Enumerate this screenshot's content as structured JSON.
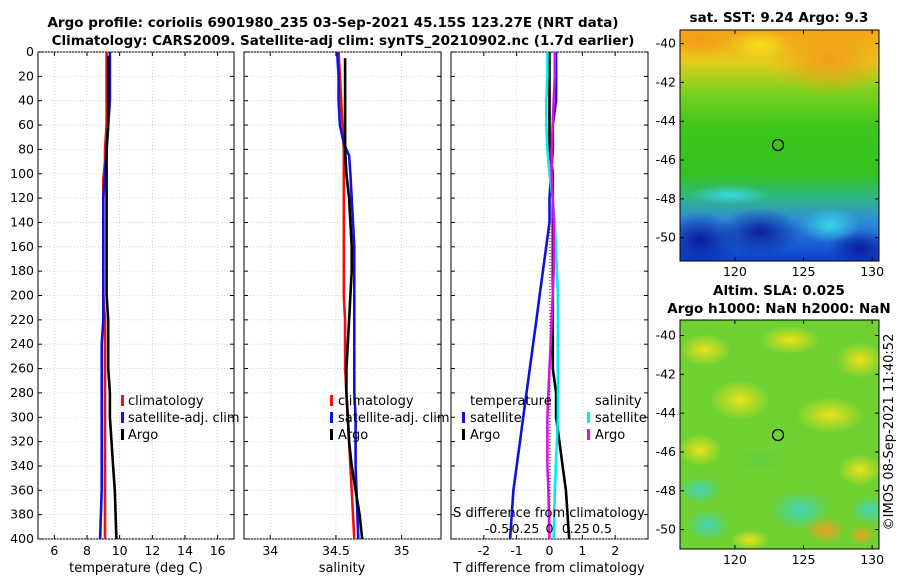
{
  "header": {
    "title_line1": "Argo profile: coriolis 6901980_235 03-Sep-2021 45.15S 123.27E (NRT data)",
    "title_line2": "Climatology: CARS2009. Satellite-adj clim: synTS_20210902.nc (1.7d earlier)"
  },
  "footer": {
    "credit": "©IMOS 08-Sep-2021 11:40:52"
  },
  "colors": {
    "climatology": "#ee1111",
    "satellite": "#1111dd",
    "argo": "#000000",
    "sal_diff": "#00eeee",
    "sal_sat": "#dd11dd",
    "grid": "#cccccc"
  },
  "chart_data": [
    {
      "id": "temperature-profile",
      "type": "line",
      "xlabel": "temperature (deg C)",
      "ylabel": "",
      "xlim": [
        5,
        17
      ],
      "ylim": [
        0,
        400
      ],
      "xticks": [
        6,
        8,
        10,
        12,
        14,
        16
      ],
      "yticks": [
        0,
        20,
        40,
        60,
        80,
        100,
        120,
        140,
        160,
        180,
        200,
        220,
        240,
        260,
        280,
        300,
        320,
        340,
        360,
        380,
        400
      ],
      "legend": [
        "climatology",
        "satellite-adj. clim",
        "Argo"
      ],
      "series": [
        {
          "name": "climatology",
          "color": "#ee1111",
          "x": [
            9.2,
            9.2,
            9.2,
            9.2,
            9.1,
            9.1,
            9.0,
            9.0,
            9.0,
            9.0,
            9.0,
            9.0,
            9.1,
            9.1,
            9.1,
            9.1,
            9.1,
            9.1,
            9.1,
            9.1,
            9.1
          ],
          "y": [
            0,
            20,
            40,
            60,
            80,
            90,
            105,
            120,
            140,
            160,
            180,
            200,
            220,
            240,
            260,
            280,
            300,
            320,
            340,
            360,
            400
          ]
        },
        {
          "name": "satellite-adj. clim",
          "color": "#1111dd",
          "x": [
            9.4,
            9.4,
            9.4,
            9.3,
            9.2,
            9.1,
            9.0,
            9.0,
            9.0,
            9.0,
            9.0,
            9.0,
            8.9,
            8.9,
            8.9,
            8.9,
            8.9,
            8.9,
            8.9,
            8.8
          ],
          "y": [
            0,
            20,
            40,
            60,
            80,
            100,
            120,
            140,
            160,
            180,
            200,
            220,
            240,
            260,
            280,
            300,
            320,
            340,
            360,
            400
          ]
        },
        {
          "name": "Argo",
          "color": "#000000",
          "x": [
            9.3,
            9.3,
            9.3,
            9.3,
            9.2,
            9.2,
            9.2,
            9.2,
            9.2,
            9.2,
            9.2,
            9.3,
            9.3,
            9.3,
            9.4,
            9.4,
            9.5,
            9.6,
            9.7,
            9.8
          ],
          "y": [
            3,
            20,
            40,
            60,
            80,
            100,
            120,
            140,
            160,
            180,
            200,
            220,
            240,
            260,
            280,
            300,
            320,
            340,
            360,
            400
          ]
        }
      ]
    },
    {
      "id": "salinity-profile",
      "type": "line",
      "xlabel": "salinity",
      "ylabel": "",
      "xlim": [
        33.8,
        35.3
      ],
      "ylim": [
        0,
        400
      ],
      "xticks": [
        34,
        34.5,
        35
      ],
      "xtick_labels": [
        "34",
        "34.5",
        "35"
      ],
      "legend": [
        "climatology",
        "satellite-adj. clim",
        "Argo"
      ],
      "series": [
        {
          "name": "climatology",
          "color": "#ee1111",
          "x": [
            34.52,
            34.53,
            34.54,
            34.55,
            34.56,
            34.56,
            34.56,
            34.56,
            34.56,
            34.56,
            34.56,
            34.57,
            34.57,
            34.57,
            34.58,
            34.59,
            34.6,
            34.61,
            34.62,
            34.64
          ],
          "y": [
            0,
            20,
            40,
            60,
            80,
            100,
            120,
            140,
            160,
            180,
            200,
            220,
            240,
            260,
            280,
            300,
            320,
            340,
            360,
            400
          ]
        },
        {
          "name": "satellite-adj. clim",
          "color": "#1111dd",
          "x": [
            34.51,
            34.52,
            34.52,
            34.53,
            34.56,
            34.6,
            34.61,
            34.62,
            34.63,
            34.64,
            34.64,
            34.64,
            34.64,
            34.64,
            34.64,
            34.64,
            34.65,
            34.65,
            34.66,
            34.67
          ],
          "y": [
            0,
            20,
            40,
            60,
            75,
            85,
            100,
            120,
            140,
            160,
            180,
            200,
            220,
            240,
            260,
            280,
            300,
            340,
            370,
            400
          ]
        },
        {
          "name": "Argo",
          "color": "#000000",
          "x": [
            34.57,
            34.57,
            34.57,
            34.57,
            34.57,
            34.58,
            34.6,
            34.61,
            34.62,
            34.62,
            34.61,
            34.6,
            34.59,
            34.58,
            34.58,
            34.59,
            34.6,
            34.62,
            34.65,
            34.68,
            34.7
          ],
          "y": [
            5,
            20,
            40,
            60,
            80,
            100,
            120,
            140,
            160,
            180,
            200,
            220,
            240,
            260,
            280,
            300,
            320,
            340,
            360,
            380,
            400
          ]
        }
      ]
    },
    {
      "id": "difference-profile",
      "type": "line",
      "xlabel": "T difference from climatology",
      "x2label": "S difference from climatology",
      "xlim": [
        -3,
        3
      ],
      "ylim": [
        0,
        400
      ],
      "xticks": [
        -2,
        -1,
        0,
        1,
        2
      ],
      "x2ticks": [
        -0.5,
        -0.25,
        0,
        0.25,
        0.5
      ],
      "x2tick_labels": [
        "-0.5",
        "-0.25",
        "0",
        "0.25",
        "0.5"
      ],
      "legend_left": [
        "temperature",
        "satellite",
        "Argo"
      ],
      "legend_right": [
        "salinity",
        "satellite",
        "Argo"
      ],
      "series": [
        {
          "name": "temperature satellite",
          "color": "#1111dd",
          "x": [
            0.2,
            0.2,
            0.2,
            0.1,
            0.1,
            0.05,
            0.0,
            0.0,
            -0.1,
            -0.2,
            -0.3,
            -0.4,
            -0.5,
            -0.6,
            -0.7,
            -0.8,
            -0.9,
            -1.0,
            -1.1,
            -1.2
          ],
          "y": [
            0,
            20,
            40,
            60,
            80,
            100,
            120,
            140,
            160,
            180,
            200,
            220,
            240,
            260,
            280,
            300,
            320,
            340,
            360,
            400
          ]
        },
        {
          "name": "temperature Argo",
          "color": "#000000",
          "x": [
            0.0,
            0.0,
            0.0,
            0.0,
            0.0,
            0.1,
            0.1,
            0.1,
            0.1,
            0.1,
            0.1,
            0.1,
            0.1,
            0.1,
            0.2,
            0.2,
            0.3,
            0.4,
            0.5,
            0.6
          ],
          "y": [
            0,
            20,
            40,
            60,
            80,
            100,
            120,
            140,
            160,
            180,
            200,
            220,
            240,
            260,
            280,
            300,
            320,
            340,
            360,
            400
          ]
        },
        {
          "name": "salinity satellite",
          "color": "#00eeee",
          "x": [
            -0.02,
            -0.02,
            -0.03,
            -0.03,
            -0.02,
            0.0,
            0.03,
            0.05,
            0.06,
            0.07,
            0.08,
            0.08,
            0.08,
            0.08,
            0.08,
            0.08,
            0.07,
            0.06,
            0.05,
            0.04
          ],
          "y": [
            0,
            20,
            40,
            60,
            80,
            100,
            120,
            140,
            160,
            180,
            200,
            220,
            240,
            260,
            280,
            300,
            320,
            340,
            360,
            400
          ]
        },
        {
          "name": "salinity Argo",
          "color": "#dd11dd",
          "x": [
            0.05,
            0.05,
            0.04,
            0.03,
            0.02,
            0.02,
            0.03,
            0.04,
            0.04,
            0.04,
            0.03,
            0.02,
            0.01,
            0.0,
            -0.01,
            -0.02,
            -0.02,
            -0.02,
            -0.01,
            0.0
          ],
          "y": [
            0,
            20,
            40,
            60,
            80,
            100,
            120,
            140,
            160,
            180,
            200,
            220,
            240,
            260,
            280,
            300,
            320,
            340,
            360,
            400
          ]
        }
      ]
    },
    {
      "id": "sst-map",
      "type": "heatmap",
      "title": "sat. SST: 9.24 Argo: 9.3",
      "xlim": [
        116,
        130.5
      ],
      "ylim": [
        -51.2,
        -39.3
      ],
      "xticks": [
        120,
        125,
        130
      ],
      "yticks": [
        -40,
        -42,
        -44,
        -46,
        -48,
        -50
      ],
      "marker": {
        "lon": 123.27,
        "lat": -45.15
      }
    },
    {
      "id": "sla-map",
      "type": "heatmap",
      "title_line1": "Altim. SLA: 0.025",
      "title_line2": "Argo h1000: NaN h2000: NaN",
      "xlim": [
        116,
        130.5
      ],
      "ylim": [
        -51,
        -39.2
      ],
      "xticks": [
        120,
        125,
        130
      ],
      "yticks": [
        -40,
        -42,
        -44,
        -46,
        -48,
        -50
      ],
      "marker": {
        "lon": 123.27,
        "lat": -45.15
      }
    }
  ]
}
